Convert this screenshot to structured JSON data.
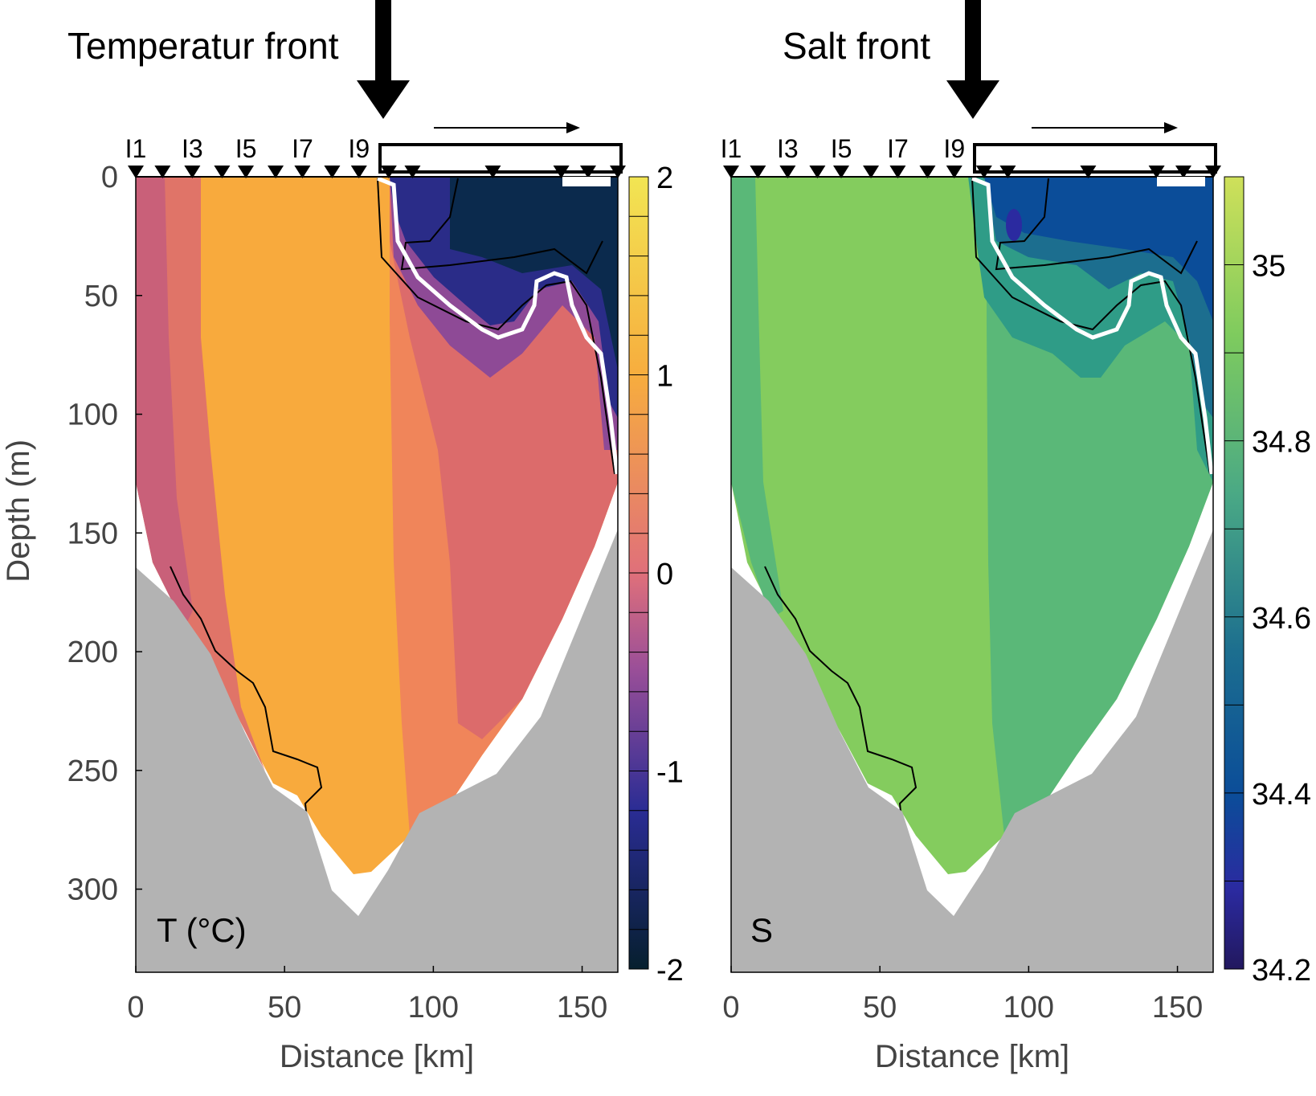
{
  "left_header": "Temperatur front",
  "right_header": "Salt front",
  "chart_data": [
    {
      "type": "contour",
      "panel_label": "T (°C)",
      "xlabel": "Distance [km]",
      "ylabel": "Depth (m)",
      "xlim": [
        0,
        162
      ],
      "ylim": [
        0,
        335
      ],
      "xticks": [
        0,
        50,
        100,
        150
      ],
      "yticks": [
        0,
        50,
        100,
        150,
        200,
        250,
        300
      ],
      "stations": [
        "I1",
        "I3",
        "I5",
        "I7",
        "I9"
      ],
      "station_x_km": [
        0,
        9,
        19,
        29,
        37,
        47,
        56,
        66,
        75,
        85,
        93,
        120,
        143,
        152,
        162
      ],
      "front_x_km": 83,
      "colorbar": {
        "min": -2,
        "max": 2,
        "levels": 20,
        "ticks": [
          2,
          1,
          0,
          -1,
          -2
        ],
        "tick_labels": [
          "2",
          "1",
          "0",
          "-1",
          "-2"
        ]
      },
      "colors": {
        "warm": "#f8aa3d",
        "mid": "#f0855a",
        "rose": "#db6b6b",
        "cold": "#0b2a4d"
      },
      "bottom_profile_km_m": [
        [
          0,
          168
        ],
        [
          12,
          188
        ],
        [
          28,
          222
        ],
        [
          37,
          240
        ],
        [
          47,
          258
        ],
        [
          59,
          270
        ],
        [
          66,
          300
        ],
        [
          75,
          313
        ],
        [
          83,
          293
        ],
        [
          92,
          268
        ],
        [
          120,
          240
        ],
        [
          140,
          210
        ],
        [
          162,
          138
        ]
      ]
    },
    {
      "type": "contour",
      "panel_label": "S",
      "xlabel": "Distance [km]",
      "ylabel": "",
      "xlim": [
        0,
        162
      ],
      "ylim": [
        0,
        335
      ],
      "xticks": [
        0,
        50,
        100,
        150
      ],
      "stations": [
        "I1",
        "I3",
        "I5",
        "I7",
        "I9"
      ],
      "station_x_km": [
        0,
        9,
        19,
        29,
        37,
        47,
        56,
        66,
        75,
        85,
        93,
        120,
        143,
        152,
        162
      ],
      "front_x_km": 83,
      "colorbar": {
        "min": 34.2,
        "max": 35.1,
        "levels": 9,
        "ticks": [
          35,
          34.8,
          34.6,
          34.4,
          34.2
        ],
        "tick_labels": [
          "35",
          "34.8",
          "34.6",
          "34.4",
          "34.2"
        ]
      },
      "colors": {
        "high": "#84cc5e",
        "mid": "#5ab878",
        "low": "#0e5a98"
      },
      "bottom_profile_km_m": [
        [
          0,
          168
        ],
        [
          12,
          188
        ],
        [
          28,
          222
        ],
        [
          37,
          240
        ],
        [
          47,
          258
        ],
        [
          59,
          270
        ],
        [
          66,
          300
        ],
        [
          75,
          313
        ],
        [
          83,
          293
        ],
        [
          92,
          268
        ],
        [
          120,
          240
        ],
        [
          140,
          210
        ],
        [
          162,
          138
        ]
      ]
    }
  ]
}
